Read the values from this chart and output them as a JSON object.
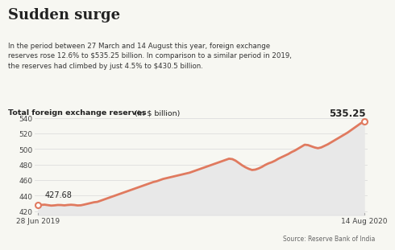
{
  "title": "Sudden surge",
  "subtitle": "In the period between 27 March and 14 August this year, foreign exchange\nreserves rose 12.6% to $535.25 billion. In comparison to a similar period in 2019,\nthe reserves had climbed by just 4.5% to $430.5 billion.",
  "chart_title_bold": "Total foreign exchange reserves",
  "chart_title_normal": " (in $ billion)",
  "source": "Source: Reserve Bank of India",
  "x_labels": [
    "28 Jun 2019",
    "14 Aug 2020"
  ],
  "start_label": "427.68",
  "end_label": "535.25",
  "ylim": [
    415,
    547
  ],
  "yticks": [
    420,
    440,
    460,
    480,
    500,
    520,
    540
  ],
  "line_color": "#E07A5F",
  "fill_color": "#E8E8E8",
  "bg_color": "#f7f7f2",
  "text_color": "#222222",
  "grid_color": "#dddddd",
  "values": [
    427.68,
    428.1,
    428.4,
    427.8,
    427.2,
    427.5,
    428.0,
    427.9,
    427.5,
    428.0,
    428.3,
    428.0,
    427.4,
    427.6,
    428.5,
    429.5,
    430.5,
    431.5,
    432.0,
    433.5,
    435.0,
    436.5,
    438.0,
    439.5,
    441.0,
    442.5,
    444.0,
    445.5,
    447.0,
    448.5,
    450.0,
    451.5,
    453.0,
    454.5,
    456.0,
    457.5,
    458.5,
    460.0,
    461.5,
    462.5,
    463.5,
    464.5,
    465.5,
    466.5,
    467.5,
    468.5,
    469.5,
    471.0,
    472.5,
    474.0,
    475.5,
    477.0,
    478.5,
    480.0,
    481.5,
    483.0,
    484.5,
    486.0,
    487.5,
    487.0,
    485.0,
    482.0,
    479.0,
    476.5,
    474.5,
    473.0,
    473.5,
    475.0,
    477.0,
    479.5,
    481.5,
    483.0,
    485.0,
    487.5,
    489.5,
    491.5,
    493.5,
    496.0,
    498.0,
    500.5,
    503.0,
    505.5,
    505.0,
    503.5,
    502.0,
    501.0,
    502.0,
    504.0,
    506.0,
    508.5,
    511.0,
    513.5,
    516.0,
    518.5,
    521.0,
    524.0,
    527.0,
    530.0,
    533.0,
    535.25
  ]
}
